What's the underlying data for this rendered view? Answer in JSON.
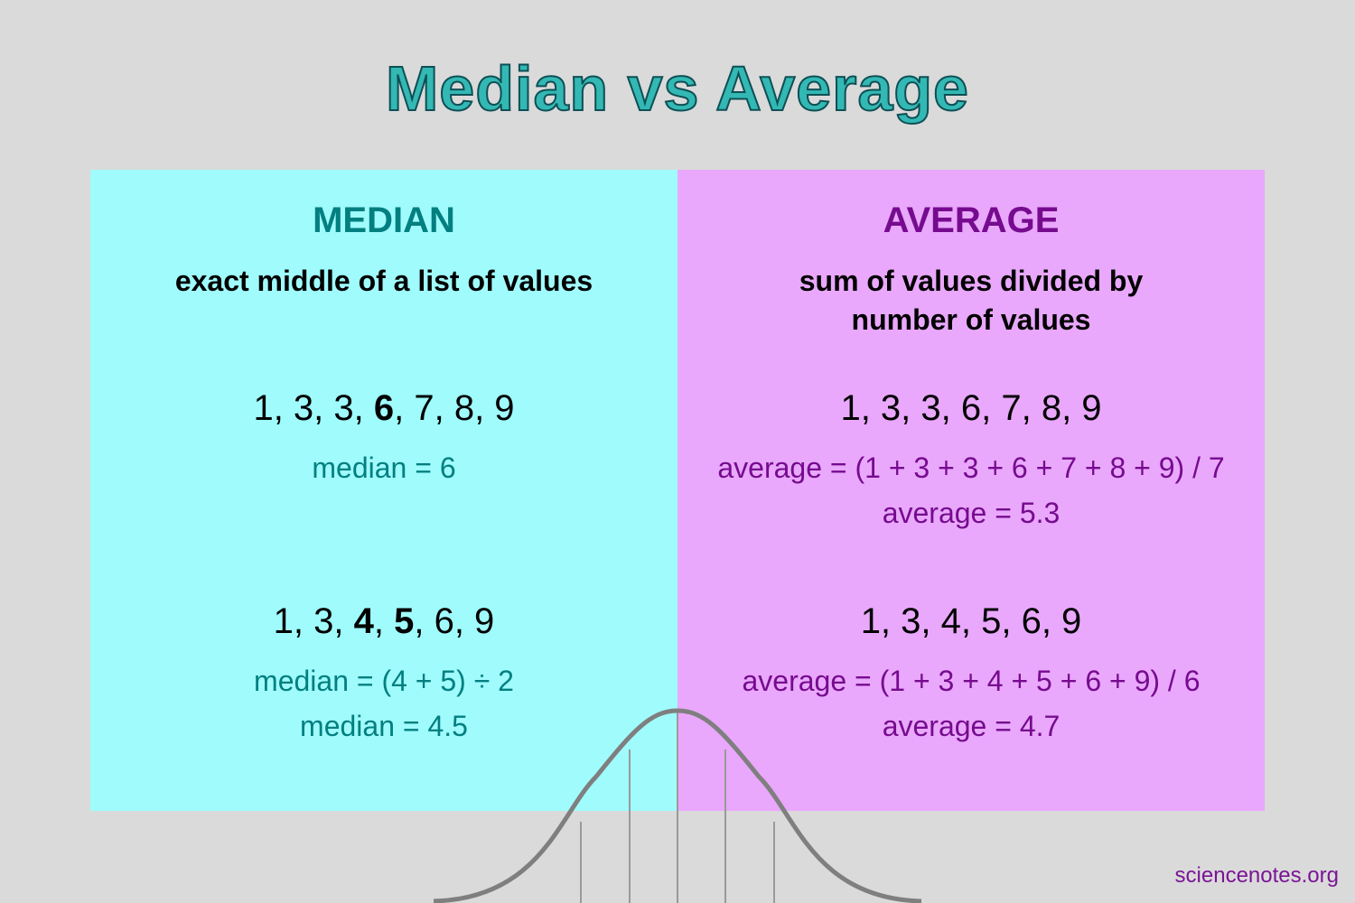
{
  "title": "Median vs Average",
  "panels": [
    {
      "heading": "MEDIAN",
      "subtitle": "exact middle of a list of values",
      "examples": [
        {
          "list": [
            {
              "text": "1, 3, 3, ",
              "bold": false
            },
            {
              "text": "6",
              "bold": true
            },
            {
              "text": ", 7, 8, 9",
              "bold": false
            }
          ],
          "lines": [
            "median = 6"
          ]
        },
        {
          "list": [
            {
              "text": "1, 3, ",
              "bold": false
            },
            {
              "text": "4",
              "bold": true
            },
            {
              "text": ", ",
              "bold": false
            },
            {
              "text": "5",
              "bold": true
            },
            {
              "text": ", 6, 9",
              "bold": false
            }
          ],
          "lines": [
            "median = (4 + 5) ÷ 2",
            "median = 4.5"
          ]
        }
      ]
    },
    {
      "heading": "AVERAGE",
      "subtitle": "sum of values divided by number of values",
      "examples": [
        {
          "list": [
            {
              "text": "1, 3, 3, 6, 7, 8, 9",
              "bold": false
            }
          ],
          "lines": [
            "average = (1 + 3 + 3 + 6 + 7 + 8 + 9) / 7",
            "average = 5.3"
          ]
        },
        {
          "list": [
            {
              "text": "1, 3, 4, 5, 6, 9",
              "bold": false
            }
          ],
          "lines": [
            "average = (1 + 3 + 4 + 5 + 6 + 9) / 6",
            "average = 4.7"
          ]
        }
      ]
    }
  ],
  "footer": "sciencenotes.org"
}
